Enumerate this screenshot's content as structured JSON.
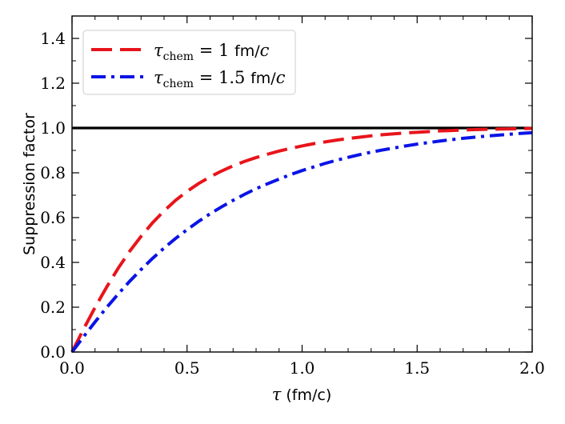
{
  "chart_data": {
    "type": "line",
    "title": "",
    "xlabel": {
      "symbol": "τ",
      "unit": "(fm/c)"
    },
    "ylabel": "Suppression factor",
    "xlim": [
      0.0,
      2.0
    ],
    "ylim": [
      0.0,
      1.5
    ],
    "xticks": [
      "0.0",
      "0.5",
      "1.0",
      "1.5",
      "2.0"
    ],
    "yticks": [
      "0.0",
      "0.2",
      "0.4",
      "0.6",
      "0.8",
      "1.0",
      "1.2",
      "1.4"
    ],
    "grid": false,
    "legend_position": "top-left",
    "reference_line": {
      "y": 1.0,
      "color": "#000000"
    },
    "series": [
      {
        "name": {
          "tau": "τ",
          "sub": "chem",
          "eq": " = 1 ",
          "unit": "fm/",
          "c": "c"
        },
        "color": "#e8141b",
        "dash": "long-dash",
        "x": [
          0.0,
          0.05,
          0.1,
          0.15,
          0.2,
          0.25,
          0.3,
          0.35,
          0.4,
          0.45,
          0.5,
          0.55,
          0.6,
          0.65,
          0.7,
          0.75,
          0.8,
          0.85,
          0.9,
          0.95,
          1.0,
          1.05,
          1.1,
          1.15,
          1.2,
          1.25,
          1.3,
          1.35,
          1.4,
          1.45,
          1.5,
          1.55,
          1.6,
          1.65,
          1.7,
          1.75,
          1.8,
          1.85,
          1.9,
          1.95,
          2.0
        ],
        "y": [
          0.0,
          0.102,
          0.199,
          0.289,
          0.373,
          0.449,
          0.516,
          0.577,
          0.63,
          0.677,
          0.717,
          0.752,
          0.782,
          0.808,
          0.831,
          0.851,
          0.868,
          0.883,
          0.897,
          0.909,
          0.92,
          0.93,
          0.938,
          0.946,
          0.953,
          0.959,
          0.965,
          0.97,
          0.974,
          0.978,
          0.981,
          0.984,
          0.987,
          0.989,
          0.991,
          0.993,
          0.994,
          0.995,
          0.996,
          0.997,
          0.998
        ]
      },
      {
        "name": {
          "tau": "τ",
          "sub": "chem",
          "eq": " = 1.5 ",
          "unit": "fm/",
          "c": "c"
        },
        "color": "#0a14e6",
        "dash": "dash-dot",
        "x": [
          0.0,
          0.05,
          0.1,
          0.15,
          0.2,
          0.25,
          0.3,
          0.35,
          0.4,
          0.45,
          0.5,
          0.55,
          0.6,
          0.65,
          0.7,
          0.75,
          0.8,
          0.85,
          0.9,
          0.95,
          1.0,
          1.05,
          1.1,
          1.15,
          1.2,
          1.25,
          1.3,
          1.35,
          1.4,
          1.45,
          1.5,
          1.55,
          1.6,
          1.65,
          1.7,
          1.75,
          1.8,
          1.85,
          1.9,
          1.95,
          2.0
        ],
        "y": [
          0.0,
          0.068,
          0.134,
          0.198,
          0.258,
          0.315,
          0.368,
          0.418,
          0.464,
          0.507,
          0.546,
          0.583,
          0.617,
          0.648,
          0.677,
          0.704,
          0.729,
          0.751,
          0.772,
          0.792,
          0.81,
          0.826,
          0.842,
          0.856,
          0.869,
          0.881,
          0.892,
          0.902,
          0.911,
          0.92,
          0.928,
          0.935,
          0.942,
          0.948,
          0.954,
          0.959,
          0.964,
          0.968,
          0.972,
          0.976,
          0.979
        ]
      }
    ]
  }
}
